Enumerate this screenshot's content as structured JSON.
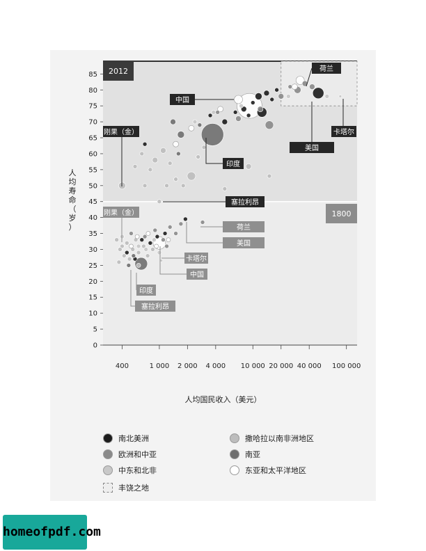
{
  "chart_data": {
    "type": "scatter",
    "title": "",
    "xlabel": "人均国民收入（美元）",
    "ylabel": "人均寿命（岁）",
    "x_scale": "log",
    "xlim": [
      250,
      130000
    ],
    "ylim": [
      0,
      89
    ],
    "x_ticks": [
      400,
      1000,
      2000,
      4000,
      10000,
      20000,
      40000,
      100000
    ],
    "x_tick_labels": [
      "400",
      "1 000",
      "2 000",
      "4 000",
      "10 000",
      "20 000",
      "40 000",
      "100 000"
    ],
    "y_ticks": [
      0,
      5,
      10,
      15,
      20,
      25,
      30,
      35,
      40,
      45,
      50,
      55,
      60,
      65,
      70,
      75,
      80,
      85
    ],
    "y_tick_labels": [
      "0",
      "5",
      "10",
      "15",
      "20",
      "25",
      "30",
      "35",
      "40",
      "45",
      "50",
      "55",
      "60",
      "65",
      "70",
      "75",
      "80",
      "85"
    ],
    "abundance_zone": {
      "x_min": 20000,
      "y_min": 75
    },
    "panels": [
      {
        "year_label": "2012",
        "points": [
          {
            "name": "刚果（金）",
            "x": 400,
            "y": 50,
            "region": "africa",
            "size": 5
          },
          {
            "name": "塞拉利昂",
            "x": 1000,
            "y": 45,
            "region": "africa",
            "size": 3
          },
          {
            "name": "印度",
            "x": 3700,
            "y": 66,
            "region": "south_asia",
            "size": 16
          },
          {
            "name": "中国",
            "x": 9200,
            "y": 75,
            "region": "east_asia",
            "size": 18
          },
          {
            "name": "荷兰",
            "x": 43000,
            "y": 81,
            "region": "europe",
            "size": 4
          },
          {
            "name": "美国",
            "x": 50000,
            "y": 79,
            "region": "americas",
            "size": 8
          },
          {
            "name": "卡塔尔",
            "x": 86000,
            "y": 78,
            "region": "mideast",
            "size": 2
          },
          {
            "x": 550,
            "y": 56,
            "region": "africa",
            "size": 3
          },
          {
            "x": 650,
            "y": 60,
            "region": "africa",
            "size": 3
          },
          {
            "x": 800,
            "y": 55,
            "region": "africa",
            "size": 3
          },
          {
            "x": 900,
            "y": 58,
            "region": "africa",
            "size": 4
          },
          {
            "x": 1100,
            "y": 61,
            "region": "africa",
            "size": 4
          },
          {
            "x": 1300,
            "y": 57,
            "region": "africa",
            "size": 3
          },
          {
            "x": 1500,
            "y": 52,
            "region": "africa",
            "size": 3
          },
          {
            "x": 1800,
            "y": 50,
            "region": "africa",
            "size": 3
          },
          {
            "x": 2200,
            "y": 53,
            "region": "africa",
            "size": 6
          },
          {
            "x": 2600,
            "y": 59,
            "region": "africa",
            "size": 3
          },
          {
            "x": 3000,
            "y": 62,
            "region": "africa",
            "size": 3
          },
          {
            "x": 5000,
            "y": 49,
            "region": "africa",
            "size": 3
          },
          {
            "x": 9000,
            "y": 56,
            "region": "africa",
            "size": 4
          },
          {
            "x": 15000,
            "y": 53,
            "region": "africa",
            "size": 3
          },
          {
            "x": 700,
            "y": 50,
            "region": "africa",
            "size": 3
          },
          {
            "x": 1200,
            "y": 50,
            "region": "africa",
            "size": 3
          },
          {
            "x": 1700,
            "y": 66,
            "region": "south_asia",
            "size": 5
          },
          {
            "x": 1400,
            "y": 70,
            "region": "south_asia",
            "size": 4
          },
          {
            "x": 2700,
            "y": 69,
            "region": "south_asia",
            "size": 3
          },
          {
            "x": 1600,
            "y": 60,
            "region": "south_asia",
            "size": 3
          },
          {
            "x": 4200,
            "y": 73,
            "region": "europe",
            "size": 3
          },
          {
            "x": 7000,
            "y": 71,
            "region": "europe",
            "size": 4
          },
          {
            "x": 12000,
            "y": 74,
            "region": "europe",
            "size": 4
          },
          {
            "x": 15000,
            "y": 69,
            "region": "europe",
            "size": 6
          },
          {
            "x": 20000,
            "y": 78,
            "region": "europe",
            "size": 4
          },
          {
            "x": 30000,
            "y": 80,
            "region": "europe",
            "size": 5
          },
          {
            "x": 36000,
            "y": 82,
            "region": "europe",
            "size": 4
          },
          {
            "x": 25000,
            "y": 81,
            "region": "europe",
            "size": 3
          },
          {
            "x": 5000,
            "y": 70,
            "region": "americas",
            "size": 4
          },
          {
            "x": 6500,
            "y": 73,
            "region": "americas",
            "size": 3
          },
          {
            "x": 8000,
            "y": 74,
            "region": "americas",
            "size": 4
          },
          {
            "x": 10000,
            "y": 76,
            "region": "americas",
            "size": 3
          },
          {
            "x": 11500,
            "y": 78,
            "region": "americas",
            "size": 5
          },
          {
            "x": 14000,
            "y": 79,
            "region": "americas",
            "size": 4
          },
          {
            "x": 16000,
            "y": 77,
            "region": "americas",
            "size": 3
          },
          {
            "x": 18000,
            "y": 80,
            "region": "americas",
            "size": 3
          },
          {
            "x": 12500,
            "y": 73,
            "region": "americas",
            "size": 7
          },
          {
            "x": 9000,
            "y": 72,
            "region": "americas",
            "size": 3
          },
          {
            "x": 3500,
            "y": 72,
            "region": "americas",
            "size": 3
          },
          {
            "x": 700,
            "y": 63,
            "region": "americas",
            "size": 3
          },
          {
            "x": 2400,
            "y": 70,
            "region": "mideast",
            "size": 3
          },
          {
            "x": 3800,
            "y": 73,
            "region": "mideast",
            "size": 3
          },
          {
            "x": 7500,
            "y": 75,
            "region": "mideast",
            "size": 3
          },
          {
            "x": 24000,
            "y": 78,
            "region": "mideast",
            "size": 3
          },
          {
            "x": 62000,
            "y": 78,
            "region": "mideast",
            "size": 3
          },
          {
            "x": 1500,
            "y": 63,
            "region": "east_asia",
            "size": 4
          },
          {
            "x": 2200,
            "y": 68,
            "region": "east_asia",
            "size": 4
          },
          {
            "x": 4500,
            "y": 74,
            "region": "east_asia",
            "size": 4
          },
          {
            "x": 7000,
            "y": 77,
            "region": "east_asia",
            "size": 6
          },
          {
            "x": 32000,
            "y": 83,
            "region": "east_asia",
            "size": 6
          },
          {
            "x": 28000,
            "y": 81,
            "region": "east_asia",
            "size": 4
          }
        ]
      },
      {
        "year_label": "1800",
        "points": [
          {
            "name": "刚果（金）",
            "x": 400,
            "y": 31,
            "region": "africa",
            "size": 3
          },
          {
            "name": "塞拉利昂",
            "x": 600,
            "y": 25,
            "region": "africa",
            "size": 3
          },
          {
            "name": "印度",
            "x": 640,
            "y": 25.5,
            "region": "south_asia",
            "size": 9
          },
          {
            "name": "中国",
            "x": 1000,
            "y": 32,
            "region": "east_asia",
            "size": 9
          },
          {
            "name": "卡塔尔",
            "x": 1050,
            "y": 26.5,
            "region": "mideast",
            "size": 2
          },
          {
            "name": "荷兰",
            "x": 2900,
            "y": 38.5,
            "region": "europe",
            "size": 3
          },
          {
            "name": "美国",
            "x": 1900,
            "y": 39.5,
            "region": "americas",
            "size": 3
          },
          {
            "x": 350,
            "y": 33,
            "region": "africa",
            "size": 3
          },
          {
            "x": 380,
            "y": 30,
            "region": "africa",
            "size": 3
          },
          {
            "x": 420,
            "y": 28,
            "region": "africa",
            "size": 3
          },
          {
            "x": 450,
            "y": 32,
            "region": "africa",
            "size": 3
          },
          {
            "x": 480,
            "y": 27,
            "region": "africa",
            "size": 3
          },
          {
            "x": 520,
            "y": 30,
            "region": "africa",
            "size": 3
          },
          {
            "x": 560,
            "y": 33,
            "region": "africa",
            "size": 3
          },
          {
            "x": 600,
            "y": 29,
            "region": "africa",
            "size": 3
          },
          {
            "x": 680,
            "y": 31,
            "region": "africa",
            "size": 3
          },
          {
            "x": 750,
            "y": 28,
            "region": "africa",
            "size": 3
          },
          {
            "x": 850,
            "y": 30,
            "region": "africa",
            "size": 3
          },
          {
            "x": 370,
            "y": 26,
            "region": "africa",
            "size": 3
          },
          {
            "x": 500,
            "y": 35,
            "region": "europe",
            "size": 3
          },
          {
            "x": 700,
            "y": 34,
            "region": "europe",
            "size": 3
          },
          {
            "x": 900,
            "y": 36,
            "region": "europe",
            "size": 3
          },
          {
            "x": 1100,
            "y": 33,
            "region": "europe",
            "size": 3
          },
          {
            "x": 1300,
            "y": 37,
            "region": "europe",
            "size": 3
          },
          {
            "x": 1500,
            "y": 35,
            "region": "europe",
            "size": 3
          },
          {
            "x": 1700,
            "y": 38,
            "region": "europe",
            "size": 3
          },
          {
            "x": 1200,
            "y": 31,
            "region": "europe",
            "size": 3
          },
          {
            "x": 450,
            "y": 29,
            "region": "americas",
            "size": 3
          },
          {
            "x": 650,
            "y": 33,
            "region": "americas",
            "size": 3
          },
          {
            "x": 800,
            "y": 32,
            "region": "americas",
            "size": 3
          },
          {
            "x": 950,
            "y": 34,
            "region": "americas",
            "size": 3
          },
          {
            "x": 1150,
            "y": 35,
            "region": "americas",
            "size": 3
          },
          {
            "x": 550,
            "y": 27,
            "region": "americas",
            "size": 3
          },
          {
            "x": 600,
            "y": 31,
            "region": "mideast",
            "size": 3
          },
          {
            "x": 720,
            "y": 30,
            "region": "mideast",
            "size": 3
          },
          {
            "x": 880,
            "y": 33,
            "region": "mideast",
            "size": 3
          },
          {
            "x": 1000,
            "y": 29,
            "region": "mideast",
            "size": 3
          },
          {
            "x": 400,
            "y": 34,
            "region": "mideast",
            "size": 3
          },
          {
            "x": 500,
            "y": 31,
            "region": "east_asia",
            "size": 3
          },
          {
            "x": 580,
            "y": 34,
            "region": "east_asia",
            "size": 3
          },
          {
            "x": 760,
            "y": 35,
            "region": "east_asia",
            "size": 3
          },
          {
            "x": 930,
            "y": 31,
            "region": "east_asia",
            "size": 3
          },
          {
            "x": 1250,
            "y": 33,
            "region": "east_asia",
            "size": 3
          },
          {
            "x": 530,
            "y": 28,
            "region": "south_asia",
            "size": 3
          },
          {
            "x": 470,
            "y": 25,
            "region": "south_asia",
            "size": 3
          }
        ]
      }
    ],
    "region_colors": {
      "americas": "#1c1c1c",
      "europe": "#8a8a8a",
      "mideast": "#c8c8c8",
      "africa": "#bdbdbd",
      "south_asia": "#6f6f6f",
      "east_asia": "#ffffff"
    },
    "callouts": [
      {
        "text": "荷兰",
        "panel": 0,
        "target": [
          43000,
          81
        ],
        "label_pos": "top-right"
      },
      {
        "text": "中国",
        "panel": 0,
        "target": [
          9200,
          75
        ],
        "label_pos": "left"
      },
      {
        "text": "刚果（金）",
        "panel": 0,
        "target": [
          400,
          50
        ],
        "label_pos": "upper-left"
      },
      {
        "text": "卡塔尔",
        "panel": 0,
        "target": [
          86000,
          78
        ],
        "label_pos": "right"
      },
      {
        "text": "美国",
        "panel": 0,
        "target": [
          50000,
          79
        ],
        "label_pos": "below"
      },
      {
        "text": "印度",
        "panel": 0,
        "target": [
          3700,
          66
        ],
        "label_pos": "below-right"
      },
      {
        "text": "塞拉利昂",
        "panel": 0,
        "target": [
          1000,
          45
        ],
        "label_pos": "right"
      },
      {
        "text": "刚果（金）",
        "panel": 1,
        "target": [
          400,
          31
        ],
        "label_pos": "top-left"
      },
      {
        "text": "荷兰",
        "panel": 1,
        "target": [
          2900,
          38.5
        ],
        "label_pos": "right"
      },
      {
        "text": "美国",
        "panel": 1,
        "target": [
          1900,
          39.5
        ],
        "label_pos": "right"
      },
      {
        "text": "卡塔尔",
        "panel": 1,
        "target": [
          1050,
          26.5
        ],
        "label_pos": "right"
      },
      {
        "text": "中国",
        "panel": 1,
        "target": [
          1000,
          32
        ],
        "label_pos": "right"
      },
      {
        "text": "印度",
        "panel": 1,
        "target": [
          640,
          25.5
        ],
        "label_pos": "below"
      },
      {
        "text": "塞拉利昂",
        "panel": 1,
        "target": [
          600,
          25
        ],
        "label_pos": "below"
      }
    ]
  },
  "legend": [
    {
      "label": "南北美洲",
      "region": "americas"
    },
    {
      "label": "欧洲和中亚",
      "region": "europe"
    },
    {
      "label": "中东和北非",
      "region": "mideast"
    },
    {
      "label": "丰饶之地",
      "region": "abundance"
    },
    {
      "label": "撒哈拉以南非洲地区",
      "region": "africa"
    },
    {
      "label": "南亚",
      "region": "south_asia"
    },
    {
      "label": "东亚和太平洋地区",
      "region": "east_asia"
    }
  ],
  "watermark": "homeofpdf.com"
}
